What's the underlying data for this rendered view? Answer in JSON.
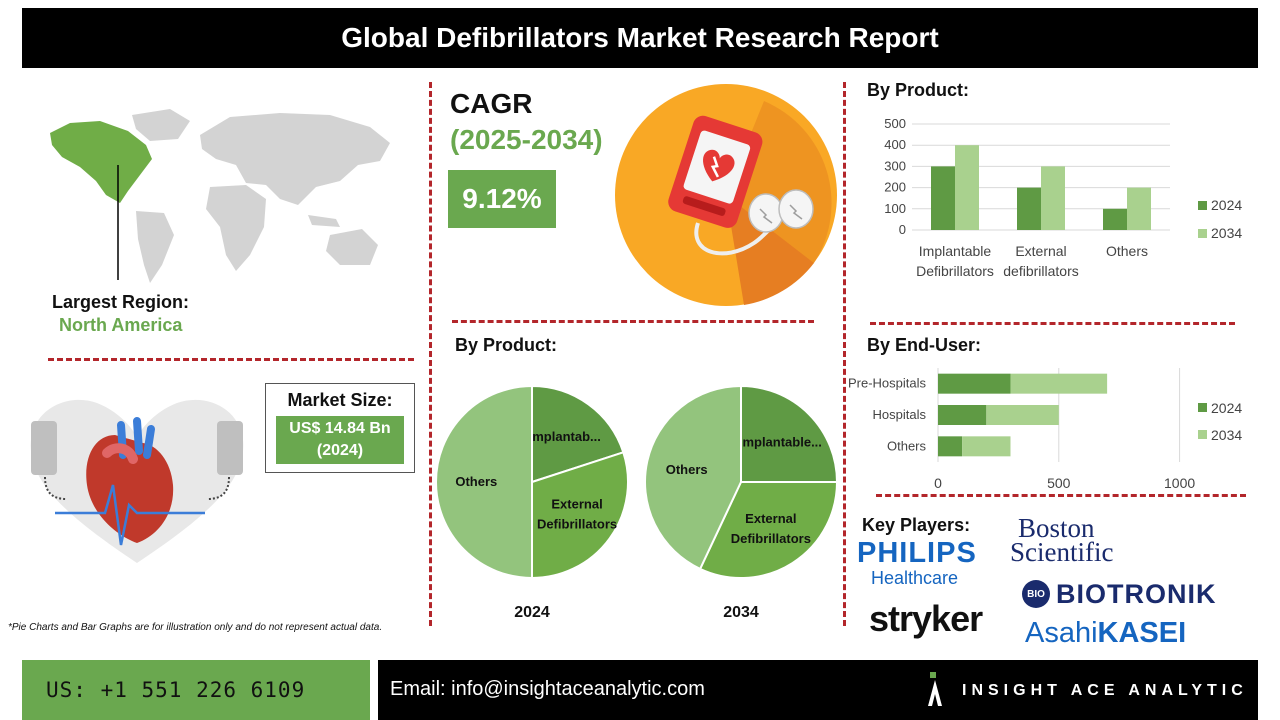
{
  "title": "Global Defibrillators Market Research Report",
  "cagr": {
    "label": "CAGR",
    "years": "(2025-2034)",
    "value": "9.12%"
  },
  "region": {
    "label": "Largest Region:",
    "value": "North America"
  },
  "market_size": {
    "label": "Market Size:",
    "value_line1": "US$ 14.84 Bn",
    "value_line2": "(2024)"
  },
  "colors": {
    "green_dark": "#5f9a44",
    "green_light": "#a9d18e",
    "green_mid": "#70ad47",
    "pie_light": "#93c47d",
    "accent_red": "#b3262b"
  },
  "bar_product": {
    "heading": "By Product:"
  },
  "bar_enduser": {
    "heading": "By End-User:"
  },
  "pie_section": {
    "heading": "By Product:"
  },
  "chart_data": [
    {
      "type": "bar",
      "categories": [
        "Implantable Defibrillators",
        "External defibrillators",
        "Others"
      ],
      "series": [
        {
          "name": "2024",
          "values": [
            300,
            200,
            100
          ]
        },
        {
          "name": "2034",
          "values": [
            400,
            300,
            200
          ]
        }
      ],
      "ylim": [
        0,
        500
      ],
      "yticks": [
        "0",
        "100",
        "200",
        "300",
        "400",
        "500"
      ],
      "legend": "right"
    },
    {
      "type": "bar",
      "orientation": "horizontal",
      "stacked": true,
      "categories": [
        "Pre-Hospitals",
        "Hospitals",
        "Others"
      ],
      "series": [
        {
          "name": "2024",
          "values": [
            300,
            200,
            100
          ]
        },
        {
          "name": "2034",
          "values": [
            400,
            300,
            200
          ]
        }
      ],
      "xlim": [
        0,
        1250
      ],
      "xticks": [
        "0",
        "500",
        "1000"
      ],
      "legend": "right"
    },
    {
      "type": "pie",
      "label": "2024",
      "slices": [
        {
          "name": "Implantab...",
          "value": 20
        },
        {
          "name": "External Defibrillators",
          "value": 30
        },
        {
          "name": "Others",
          "value": 50
        }
      ]
    },
    {
      "type": "pie",
      "label": "2034",
      "slices": [
        {
          "name": "Implantable...",
          "value": 25
        },
        {
          "name": "External Defibrillators",
          "value": 32
        },
        {
          "name": "Others",
          "value": 43
        }
      ]
    }
  ],
  "footnote": "*Pie Charts and Bar Graphs are for illustration only and do not represent actual data.",
  "key_players": {
    "heading": "Key Players:",
    "philips_line1": "PHILIPS",
    "philips_line2": "Healthcare",
    "boston_line1": "Boston",
    "boston_line2": "Scientific",
    "stryker": "stryker",
    "biotronik": "BIOTRONIK",
    "bio_mark": "BIO",
    "asahi_a": "Asahi",
    "asahi_b": "KASEI"
  },
  "footer": {
    "phone": "US: +1 551 226 6109",
    "email": "Email: info@insightaceanalytic.com",
    "brand": "INSIGHT ACE ANALYTIC"
  }
}
